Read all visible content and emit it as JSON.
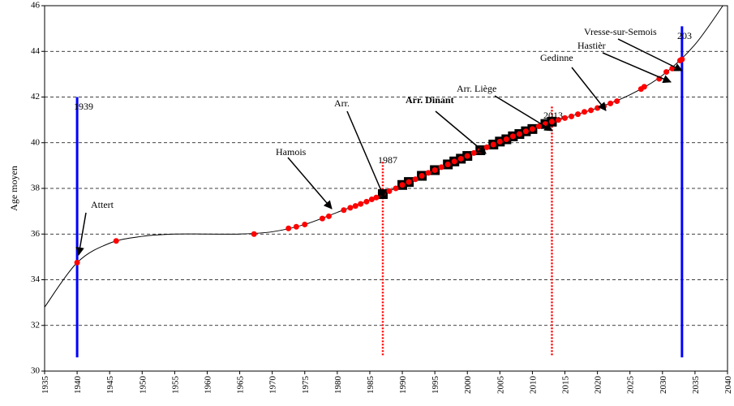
{
  "chart_data": {
    "type": "line",
    "ylabel": "Age moyen",
    "xlim": [
      1935,
      2040
    ],
    "xticks": [
      1935,
      1940,
      1945,
      1950,
      1955,
      1960,
      1965,
      1970,
      1975,
      1980,
      1985,
      1990,
      1995,
      2000,
      2005,
      2010,
      2015,
      2020,
      2025,
      2030,
      2035,
      2040
    ],
    "ylim": [
      30,
      46
    ],
    "yticks": [
      30,
      32,
      34,
      36,
      38,
      40,
      42,
      44,
      46
    ],
    "grid": true,
    "curve": {
      "color": "#000000",
      "x": [
        1935,
        1940,
        1945,
        1950,
        1955,
        1960,
        1965,
        1970,
        1975,
        1980,
        1985,
        1990,
        1995,
        2000,
        2005,
        2010,
        2015,
        2020,
        2025,
        2030,
        2035,
        2040
      ],
      "values": [
        32.8,
        34.75,
        35.6,
        35.9,
        36.0,
        36.0,
        36.0,
        36.1,
        36.42,
        36.95,
        37.5,
        38.15,
        38.8,
        39.42,
        40.05,
        40.6,
        41.08,
        41.52,
        42.1,
        42.95,
        44.3,
        46.3
      ]
    },
    "dots": {
      "color": "#ff0000",
      "x": [
        1940,
        1946,
        1967.2,
        1972.5,
        1973.7,
        1975,
        1977.7,
        1978.7,
        1981,
        1982,
        1982.8,
        1983.6,
        1984.5,
        1985.3,
        1986,
        1987,
        1988,
        1989,
        1990,
        1991,
        1992,
        1993,
        1994,
        1995,
        1996,
        1997,
        1998,
        1999,
        2000,
        2001,
        2002,
        2003,
        2004,
        2005,
        2006,
        2007,
        2008,
        2009,
        2010,
        2011,
        2012,
        2013,
        2014,
        2015,
        2016,
        2017,
        2018,
        2019,
        2020,
        2021,
        2022,
        2023,
        2026.7,
        2027.2,
        2029.5,
        2030.6,
        2031.5,
        2032.7,
        2033
      ],
      "values": [
        34.75,
        35.7,
        36.0,
        36.25,
        36.32,
        36.42,
        36.68,
        36.78,
        37.05,
        37.15,
        37.23,
        37.32,
        37.42,
        37.52,
        37.6,
        37.75,
        37.88,
        38.0,
        38.15,
        38.28,
        38.4,
        38.55,
        38.68,
        38.8,
        38.93,
        39.05,
        39.18,
        39.3,
        39.42,
        39.55,
        39.67,
        39.8,
        39.92,
        40.05,
        40.15,
        40.28,
        40.38,
        40.5,
        40.6,
        40.72,
        40.82,
        40.92,
        41.0,
        41.08,
        41.15,
        41.25,
        41.35,
        41.42,
        41.52,
        41.6,
        41.72,
        41.82,
        42.35,
        42.45,
        42.8,
        43.1,
        43.25,
        43.6,
        43.65
      ]
    },
    "squares": {
      "color": "#000000",
      "x": [
        1987,
        1990,
        1991,
        1993,
        1995,
        1997,
        1998,
        1999,
        2000,
        2002,
        2004,
        2005,
        2006,
        2007,
        2008,
        2009,
        2010,
        2012,
        2013
      ],
      "values": [
        37.75,
        38.15,
        38.28,
        38.55,
        38.8,
        39.05,
        39.18,
        39.3,
        39.42,
        39.67,
        39.92,
        40.05,
        40.15,
        40.28,
        40.38,
        40.5,
        40.6,
        40.82,
        40.92
      ]
    },
    "vlines": [
      {
        "x": 1940,
        "from": 30.6,
        "to": 42,
        "label": "1939",
        "color": "#0000ff",
        "style": "solid"
      },
      {
        "x": 1987,
        "from": 30.7,
        "to": 39.2,
        "label": "1987",
        "color": "#ff0000",
        "style": "dotted"
      },
      {
        "x": 2013,
        "from": 30.7,
        "to": 41.6,
        "label": "2013",
        "color": "#ff0000",
        "style": "dotted"
      },
      {
        "x": 2033,
        "from": 30.6,
        "to": 45.1,
        "label": "203",
        "color": "#0000ff",
        "style": "solid"
      }
    ],
    "annotations": [
      {
        "text": "Attert"
      },
      {
        "text": "Hamois"
      },
      {
        "text": "Arr."
      },
      {
        "text": "Arr. Dinant",
        "bold": true
      },
      {
        "text": "Arr. Liège"
      },
      {
        "text": "Gedinne"
      },
      {
        "text": "Hastièr"
      },
      {
        "text": "Vresse-sur-Semois"
      }
    ]
  }
}
